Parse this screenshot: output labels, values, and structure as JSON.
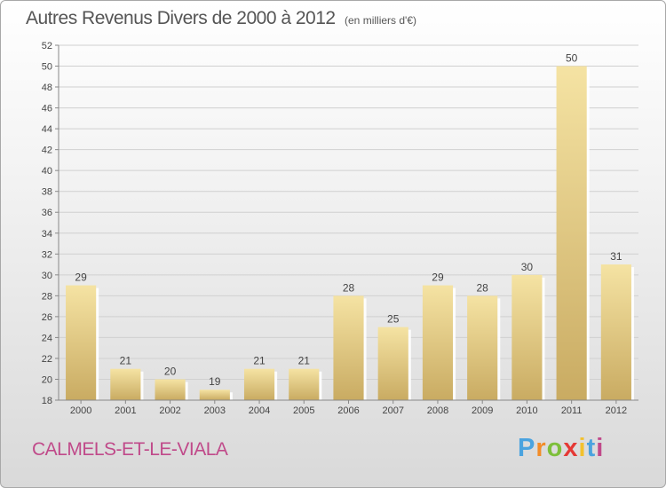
{
  "chart_data": {
    "type": "bar",
    "title": "Autres Revenus Divers de 2000 à 2012",
    "subtitle": "(en milliers d'€)",
    "categories": [
      "2000",
      "2001",
      "2002",
      "2003",
      "2004",
      "2005",
      "2006",
      "2007",
      "2008",
      "2009",
      "2010",
      "2011",
      "2012"
    ],
    "values": [
      29,
      21,
      20,
      19,
      21,
      21,
      28,
      25,
      29,
      28,
      30,
      50,
      31
    ],
    "ylim": [
      18,
      52
    ],
    "ytick_step": 2,
    "grid": true,
    "bar_color_light": "#f5e3a3",
    "bar_color_dark": "#c9ab62"
  },
  "location": "CALMELS-ET-LE-VIALA",
  "logo": {
    "letters": [
      "P",
      "r",
      "o",
      "x",
      "i",
      "t",
      "i"
    ],
    "colors": [
      "#4aa3df",
      "#f28c28",
      "#7dbf3a",
      "#e53935",
      "#f2c12e",
      "#4aa3df",
      "#c04a8a"
    ]
  }
}
